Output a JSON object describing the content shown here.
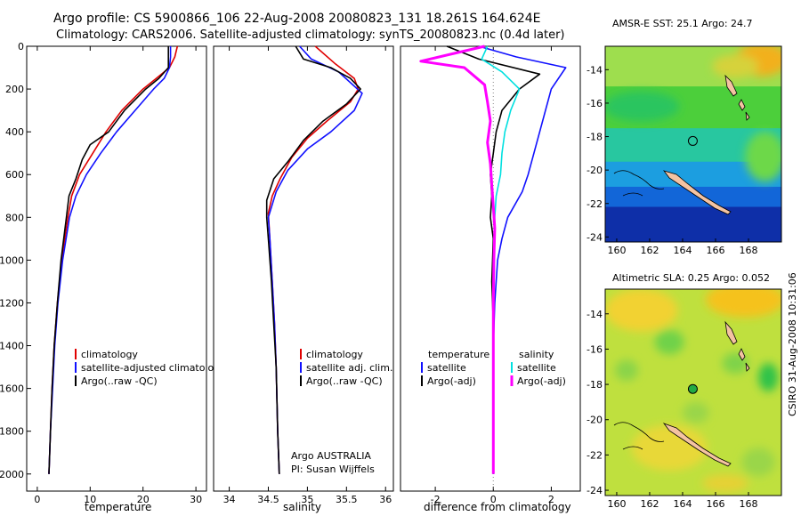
{
  "header": {
    "title": "Argo profile: CS 5900866_106 22-Aug-2008 20080823_131 18.261S 164.624E",
    "subtitle": "Climatology: CARS2006. Satellite-adjusted climatology: synTS_20080823.nc (0.4d later)"
  },
  "credit": "CSIRO 31-Aug-2008 10:31:06",
  "colors": {
    "climatology": "#e00000",
    "satellite": "#1010ff",
    "argo": "#000000",
    "argo_salinity": "#ff00ff",
    "satellite_salinity": "#00e0e0"
  },
  "chart_data": [
    {
      "type": "line",
      "id": "temperature",
      "xlabel": "temperature",
      "ylabel": "",
      "xlim": [
        -2,
        32
      ],
      "ylim": [
        2080,
        0
      ],
      "xticks": [
        0,
        10,
        20,
        30
      ],
      "yticks": [
        0,
        200,
        400,
        600,
        800,
        1000,
        1200,
        1400,
        1600,
        1800,
        2000
      ],
      "ytick_labels": [
        "0",
        "200",
        "400",
        "600",
        "800",
        "1000",
        "1200",
        "1400",
        "1600",
        "1800",
        "2000"
      ],
      "legend": [
        "climatology",
        "satellite-adjusted climatology",
        "Argo(..raw -QC)"
      ],
      "series": [
        {
          "name": "climatology",
          "color": "#e00000",
          "points": [
            [
              26.5,
              0
            ],
            [
              26,
              50
            ],
            [
              25,
              100
            ],
            [
              22.5,
              150
            ],
            [
              20,
              200
            ],
            [
              16,
              300
            ],
            [
              13,
              400
            ],
            [
              10.5,
              500
            ],
            [
              8,
              600
            ],
            [
              6.5,
              700
            ],
            [
              5.8,
              800
            ],
            [
              4.6,
              1000
            ],
            [
              3.8,
              1200
            ],
            [
              3.2,
              1400
            ],
            [
              2.8,
              1600
            ],
            [
              2.5,
              1800
            ],
            [
              2.2,
              2000
            ]
          ]
        },
        {
          "name": "satellite-adjusted climatology",
          "color": "#1010ff",
          "points": [
            [
              25.2,
              0
            ],
            [
              25.2,
              50
            ],
            [
              25,
              100
            ],
            [
              24,
              150
            ],
            [
              22,
              200
            ],
            [
              18.5,
              300
            ],
            [
              15,
              400
            ],
            [
              12,
              500
            ],
            [
              9.3,
              600
            ],
            [
              7.3,
              700
            ],
            [
              6.1,
              800
            ],
            [
              4.8,
              1000
            ],
            [
              3.9,
              1200
            ],
            [
              3.3,
              1400
            ],
            [
              2.9,
              1600
            ],
            [
              2.5,
              1800
            ],
            [
              2.2,
              2000
            ]
          ]
        },
        {
          "name": "Argo(..raw -QC)",
          "color": "#000000",
          "points": [
            [
              24.8,
              0
            ],
            [
              24.8,
              100
            ],
            [
              23,
              150
            ],
            [
              20.5,
              200
            ],
            [
              16.5,
              300
            ],
            [
              13.5,
              400
            ],
            [
              10,
              460
            ],
            [
              8.5,
              530
            ],
            [
              7.3,
              620
            ],
            [
              6,
              700
            ],
            [
              5.5,
              800
            ],
            [
              4.5,
              1000
            ],
            [
              3.8,
              1200
            ],
            [
              3.2,
              1400
            ],
            [
              2.8,
              1600
            ],
            [
              2.5,
              1800
            ],
            [
              2.2,
              2000
            ]
          ]
        }
      ]
    },
    {
      "type": "line",
      "id": "salinity",
      "xlabel": "salinity",
      "xlim": [
        33.8,
        36.1
      ],
      "ylim": [
        2080,
        0
      ],
      "xticks": [
        34,
        34.5,
        35,
        35.5,
        36
      ],
      "legend": [
        "climatology",
        "satellite adj. clim.",
        "Argo(..raw -QC)"
      ],
      "annotation": [
        "Argo AUSTRALIA",
        "PI: Susan Wijffels"
      ],
      "series": [
        {
          "name": "climatology",
          "color": "#e00000",
          "points": [
            [
              35.1,
              0
            ],
            [
              35.35,
              80
            ],
            [
              35.6,
              150
            ],
            [
              35.65,
              200
            ],
            [
              35.55,
              260
            ],
            [
              35.25,
              350
            ],
            [
              35.0,
              430
            ],
            [
              34.8,
              520
            ],
            [
              34.65,
              620
            ],
            [
              34.55,
              700
            ],
            [
              34.5,
              780
            ],
            [
              34.52,
              900
            ],
            [
              34.55,
              1100
            ],
            [
              34.58,
              1300
            ],
            [
              34.6,
              1500
            ],
            [
              34.62,
              1800
            ],
            [
              34.64,
              2000
            ]
          ]
        },
        {
          "name": "satellite adj. clim.",
          "color": "#1010ff",
          "points": [
            [
              34.9,
              0
            ],
            [
              35.05,
              60
            ],
            [
              35.4,
              120
            ],
            [
              35.7,
              220
            ],
            [
              35.6,
              300
            ],
            [
              35.3,
              400
            ],
            [
              35.0,
              480
            ],
            [
              34.75,
              580
            ],
            [
              34.6,
              680
            ],
            [
              34.5,
              800
            ],
            [
              34.52,
              900
            ],
            [
              34.55,
              1100
            ],
            [
              34.58,
              1300
            ],
            [
              34.6,
              1500
            ],
            [
              34.62,
              1800
            ],
            [
              34.64,
              2000
            ]
          ]
        },
        {
          "name": "Argo(..raw -QC)",
          "color": "#000000",
          "points": [
            [
              34.85,
              0
            ],
            [
              34.95,
              60
            ],
            [
              35.3,
              100
            ],
            [
              35.55,
              150
            ],
            [
              35.68,
              200
            ],
            [
              35.5,
              270
            ],
            [
              35.2,
              350
            ],
            [
              34.95,
              440
            ],
            [
              34.75,
              540
            ],
            [
              34.57,
              620
            ],
            [
              34.48,
              720
            ],
            [
              34.48,
              800
            ],
            [
              34.5,
              900
            ],
            [
              34.54,
              1100
            ],
            [
              34.57,
              1300
            ],
            [
              34.6,
              1500
            ],
            [
              34.62,
              1800
            ],
            [
              34.64,
              2000
            ]
          ]
        }
      ]
    },
    {
      "type": "line",
      "id": "difference",
      "xlabel": "difference from climatology",
      "xlim": [
        -3.2,
        3.0
      ],
      "ylim": [
        2080,
        0
      ],
      "xticks": [
        -2,
        0,
        2
      ],
      "legend_left_title": "temperature",
      "legend_right_title": "salinity",
      "legend_left": [
        "satellite",
        "Argo(-adj)"
      ],
      "legend_right": [
        "satellite",
        "Argo(-adj)"
      ],
      "series": [
        {
          "name": "temperature satellite",
          "color": "#1010ff",
          "points": [
            [
              -0.5,
              0
            ],
            [
              0.8,
              50
            ],
            [
              2.5,
              100
            ],
            [
              2.0,
              200
            ],
            [
              1.8,
              300
            ],
            [
              1.6,
              400
            ],
            [
              1.4,
              500
            ],
            [
              1.2,
              600
            ],
            [
              1.0,
              680
            ],
            [
              0.5,
              800
            ],
            [
              0.3,
              900
            ],
            [
              0.15,
              1000
            ],
            [
              0.05,
              1200
            ],
            [
              0.0,
              1400
            ],
            [
              0.0,
              2000
            ]
          ]
        },
        {
          "name": "temperature Argo(-adj)",
          "color": "#000000",
          "points": [
            [
              -1.6,
              0
            ],
            [
              -0.5,
              60
            ],
            [
              1.6,
              130
            ],
            [
              0.9,
              200
            ],
            [
              0.6,
              250
            ],
            [
              0.3,
              300
            ],
            [
              0.1,
              400
            ],
            [
              0.0,
              500
            ],
            [
              -0.1,
              600
            ],
            [
              -0.05,
              700
            ],
            [
              -0.1,
              800
            ],
            [
              0.0,
              900
            ],
            [
              -0.05,
              1100
            ],
            [
              0.0,
              1300
            ],
            [
              0.0,
              2000
            ]
          ]
        },
        {
          "name": "salinity satellite",
          "color": "#00e0e0",
          "points": [
            [
              -0.2,
              0
            ],
            [
              -0.4,
              60
            ],
            [
              0.3,
              120
            ],
            [
              0.9,
              200
            ],
            [
              0.6,
              300
            ],
            [
              0.4,
              400
            ],
            [
              0.3,
              500
            ],
            [
              0.25,
              600
            ],
            [
              0.1,
              700
            ],
            [
              0.05,
              800
            ],
            [
              0.02,
              1000
            ],
            [
              0.0,
              1200
            ],
            [
              0.0,
              2000
            ]
          ]
        },
        {
          "name": "salinity Argo(-adj)",
          "color": "#ff00ff",
          "points": [
            [
              -0.3,
              0
            ],
            [
              -2.5,
              70
            ],
            [
              -1.0,
              100
            ],
            [
              -0.3,
              180
            ],
            [
              -0.2,
              260
            ],
            [
              -0.1,
              350
            ],
            [
              -0.2,
              450
            ],
            [
              -0.1,
              550
            ],
            [
              -0.05,
              650
            ],
            [
              0.0,
              750
            ],
            [
              0.05,
              850
            ],
            [
              0.02,
              1000
            ],
            [
              0.0,
              1200
            ],
            [
              0.0,
              2000
            ]
          ]
        }
      ]
    },
    {
      "type": "heatmap",
      "id": "sst_map",
      "title": "AMSR-E SST: 25.1 Argo: 24.7",
      "xlim": [
        159.3,
        170
      ],
      "ylim": [
        -24.3,
        -12.6
      ],
      "xticks": [
        160,
        162,
        164,
        166,
        168
      ],
      "yticks": [
        -14,
        -16,
        -18,
        -20,
        -22,
        -24
      ],
      "marker": [
        164.62,
        -18.26
      ],
      "bands": [
        {
          "top": -12.6,
          "bottom": -15.0,
          "color": "#9ede4e"
        },
        {
          "top": -15.0,
          "bottom": -17.5,
          "color": "#4ccf3b"
        },
        {
          "top": -17.5,
          "bottom": -19.5,
          "color": "#28c7a0"
        },
        {
          "top": -19.5,
          "bottom": -21.0,
          "color": "#1c9ee0"
        },
        {
          "top": -21.0,
          "bottom": -22.2,
          "color": "#1266d8"
        },
        {
          "top": -22.2,
          "bottom": -24.3,
          "color": "#0e2fa8"
        }
      ],
      "patches": [
        {
          "cx": 168.8,
          "cy": -13.4,
          "rx": 1.6,
          "ry": 1.0,
          "color": "#f2b01e"
        },
        {
          "cx": 167.2,
          "cy": -13.8,
          "rx": 1.4,
          "ry": 0.7,
          "color": "#d6d23a"
        },
        {
          "cx": 161.5,
          "cy": -16.2,
          "rx": 2.3,
          "ry": 0.9,
          "color": "#29c55f"
        },
        {
          "cx": 169.0,
          "cy": -19.2,
          "rx": 1.2,
          "ry": 1.5,
          "color": "#6dd84a"
        }
      ]
    },
    {
      "type": "heatmap",
      "id": "sla_map",
      "title": "Altimetric SLA: 0.25 Argo: 0.052",
      "xlim": [
        159.3,
        170
      ],
      "ylim": [
        -24.3,
        -12.6
      ],
      "xticks": [
        160,
        162,
        164,
        166,
        168
      ],
      "yticks": [
        -14,
        -16,
        -18,
        -20,
        -22,
        -24
      ],
      "marker": [
        164.62,
        -18.26
      ],
      "base_color": "#bfe03e",
      "patches": [
        {
          "cx": 161.5,
          "cy": -13.8,
          "rx": 2.2,
          "ry": 1.2,
          "color": "#f2d232"
        },
        {
          "cx": 167.8,
          "cy": -13.2,
          "rx": 2.4,
          "ry": 1.0,
          "color": "#f5c21e"
        },
        {
          "cx": 163.2,
          "cy": -15.6,
          "rx": 0.9,
          "ry": 0.7,
          "color": "#6fd24a"
        },
        {
          "cx": 160.6,
          "cy": -17.2,
          "rx": 0.7,
          "ry": 0.6,
          "color": "#8ad44a"
        },
        {
          "cx": 167.2,
          "cy": -16.8,
          "rx": 0.8,
          "ry": 0.6,
          "color": "#7fd34a"
        },
        {
          "cx": 169.2,
          "cy": -17.6,
          "rx": 0.6,
          "ry": 0.8,
          "color": "#2fc24a"
        },
        {
          "cx": 163.2,
          "cy": -21.6,
          "rx": 2.3,
          "ry": 1.3,
          "color": "#e8d838"
        },
        {
          "cx": 164.8,
          "cy": -19.6,
          "rx": 0.8,
          "ry": 0.6,
          "color": "#9ad648"
        },
        {
          "cx": 166.6,
          "cy": -23.6,
          "rx": 1.4,
          "ry": 0.5,
          "color": "#e6d136"
        },
        {
          "cx": 168.6,
          "cy": -22.4,
          "rx": 1.0,
          "ry": 0.8,
          "color": "#9ad648"
        }
      ]
    }
  ]
}
